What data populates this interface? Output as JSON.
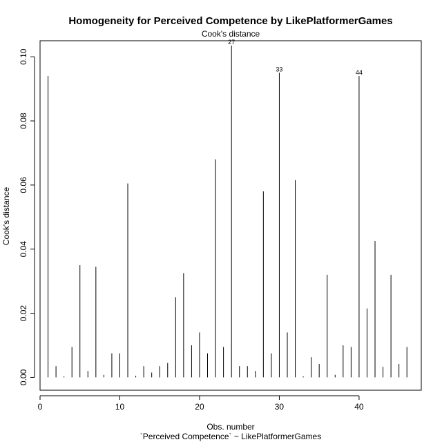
{
  "chart_data": {
    "type": "bar",
    "style": "vertical-lines",
    "title": "Homogeneity for Perceived Competence by LikePlatformerGames",
    "subtitle": "Cook's distance",
    "xlabel": "Obs. number",
    "xlabel2": "`Perceived Competence` ~ LikePlatformerGames",
    "ylabel": "Cook's distance",
    "xlim": [
      0,
      47.8
    ],
    "ylim": [
      -0.004,
      0.105
    ],
    "x_ticks": [
      0,
      10,
      20,
      30,
      40
    ],
    "y_ticks": [
      0.0,
      0.02,
      0.04,
      0.06,
      0.08,
      0.1
    ],
    "y_tick_labels": [
      "0.00",
      "0.02",
      "0.04",
      "0.06",
      "0.08",
      "0.10"
    ],
    "x": [
      1,
      2,
      3,
      4,
      5,
      6,
      7,
      8,
      9,
      10,
      11,
      12,
      13,
      14,
      15,
      16,
      17,
      18,
      19,
      20,
      21,
      22,
      23,
      24,
      25,
      26,
      27,
      28,
      29,
      30,
      31,
      32,
      33,
      34,
      35,
      36,
      37,
      38,
      39,
      40,
      41,
      42,
      43,
      44,
      45,
      46
    ],
    "values": [
      0.094,
      0.0035,
      0.0003,
      0.0095,
      0.035,
      0.002,
      0.0345,
      0.0008,
      0.0075,
      0.0075,
      0.0605,
      0.0005,
      0.0035,
      0.0015,
      0.0035,
      0.0045,
      0.025,
      0.0325,
      0.01,
      0.014,
      0.0075,
      0.068,
      0.0095,
      0.1035,
      0.0035,
      0.0035,
      0.002,
      0.058,
      0.0075,
      0.095,
      0.014,
      0.0615,
      0.0003,
      0.0063,
      0.0042,
      0.032,
      0.0008,
      0.01,
      0.0095,
      0.094,
      0.0215,
      0.0425,
      0.0033,
      0.032,
      0.0042,
      0.0095
    ],
    "annotations": [
      {
        "x": 24,
        "y": 0.1035,
        "text": "27"
      },
      {
        "x": 30,
        "y": 0.095,
        "text": "33"
      },
      {
        "x": 40,
        "y": 0.094,
        "text": "44"
      }
    ]
  }
}
